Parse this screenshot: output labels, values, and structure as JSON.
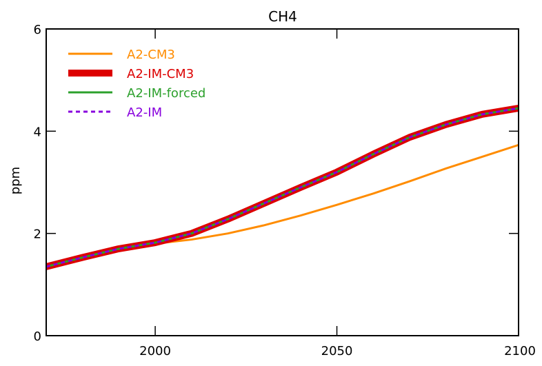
{
  "chart_data": {
    "type": "line",
    "title": "CH4",
    "xlabel": "",
    "ylabel": "ppm",
    "xlim": [
      1970,
      2100
    ],
    "ylim": [
      0,
      6
    ],
    "xticks": [
      2000,
      2050,
      2100
    ],
    "yticks": [
      0,
      2,
      4,
      6
    ],
    "grid": false,
    "legend_position": "top-left",
    "series": [
      {
        "name": "A2-CM3",
        "color": "#ff8c00",
        "style": "solid",
        "width": "thin",
        "x": [
          1970,
          1980,
          1990,
          2000,
          2010,
          2020,
          2030,
          2040,
          2050,
          2060,
          2070,
          2080,
          2090,
          2100
        ],
        "y": [
          1.35,
          1.52,
          1.68,
          1.8,
          1.88,
          2.0,
          2.16,
          2.35,
          2.56,
          2.78,
          3.02,
          3.27,
          3.5,
          3.73
        ]
      },
      {
        "name": "A2-IM-CM3",
        "color": "#dd0000",
        "style": "solid",
        "width": "thick",
        "x": [
          1970,
          1980,
          1990,
          2000,
          2010,
          2020,
          2030,
          2040,
          2050,
          2060,
          2070,
          2080,
          2090,
          2100
        ],
        "y": [
          1.35,
          1.53,
          1.7,
          1.82,
          2.0,
          2.28,
          2.59,
          2.9,
          3.2,
          3.55,
          3.88,
          4.13,
          4.33,
          4.45
        ]
      },
      {
        "name": "A2-IM-forced",
        "color": "#2ca02c",
        "style": "solid",
        "width": "thin",
        "x": [
          1970,
          1980,
          1990,
          2000,
          2010,
          2020,
          2030,
          2040,
          2050,
          2060,
          2070,
          2080,
          2090,
          2100
        ],
        "y": [
          1.35,
          1.53,
          1.7,
          1.82,
          2.0,
          2.28,
          2.59,
          2.9,
          3.2,
          3.55,
          3.88,
          4.13,
          4.33,
          4.45
        ]
      },
      {
        "name": "A2-IM",
        "color": "#8800dd",
        "style": "dashed",
        "width": "medium",
        "x": [
          1970,
          1980,
          1990,
          2000,
          2010,
          2020,
          2030,
          2040,
          2050,
          2060,
          2070,
          2080,
          2090,
          2100
        ],
        "y": [
          1.35,
          1.53,
          1.7,
          1.82,
          2.0,
          2.28,
          2.59,
          2.9,
          3.2,
          3.55,
          3.88,
          4.13,
          4.33,
          4.45
        ]
      }
    ]
  }
}
